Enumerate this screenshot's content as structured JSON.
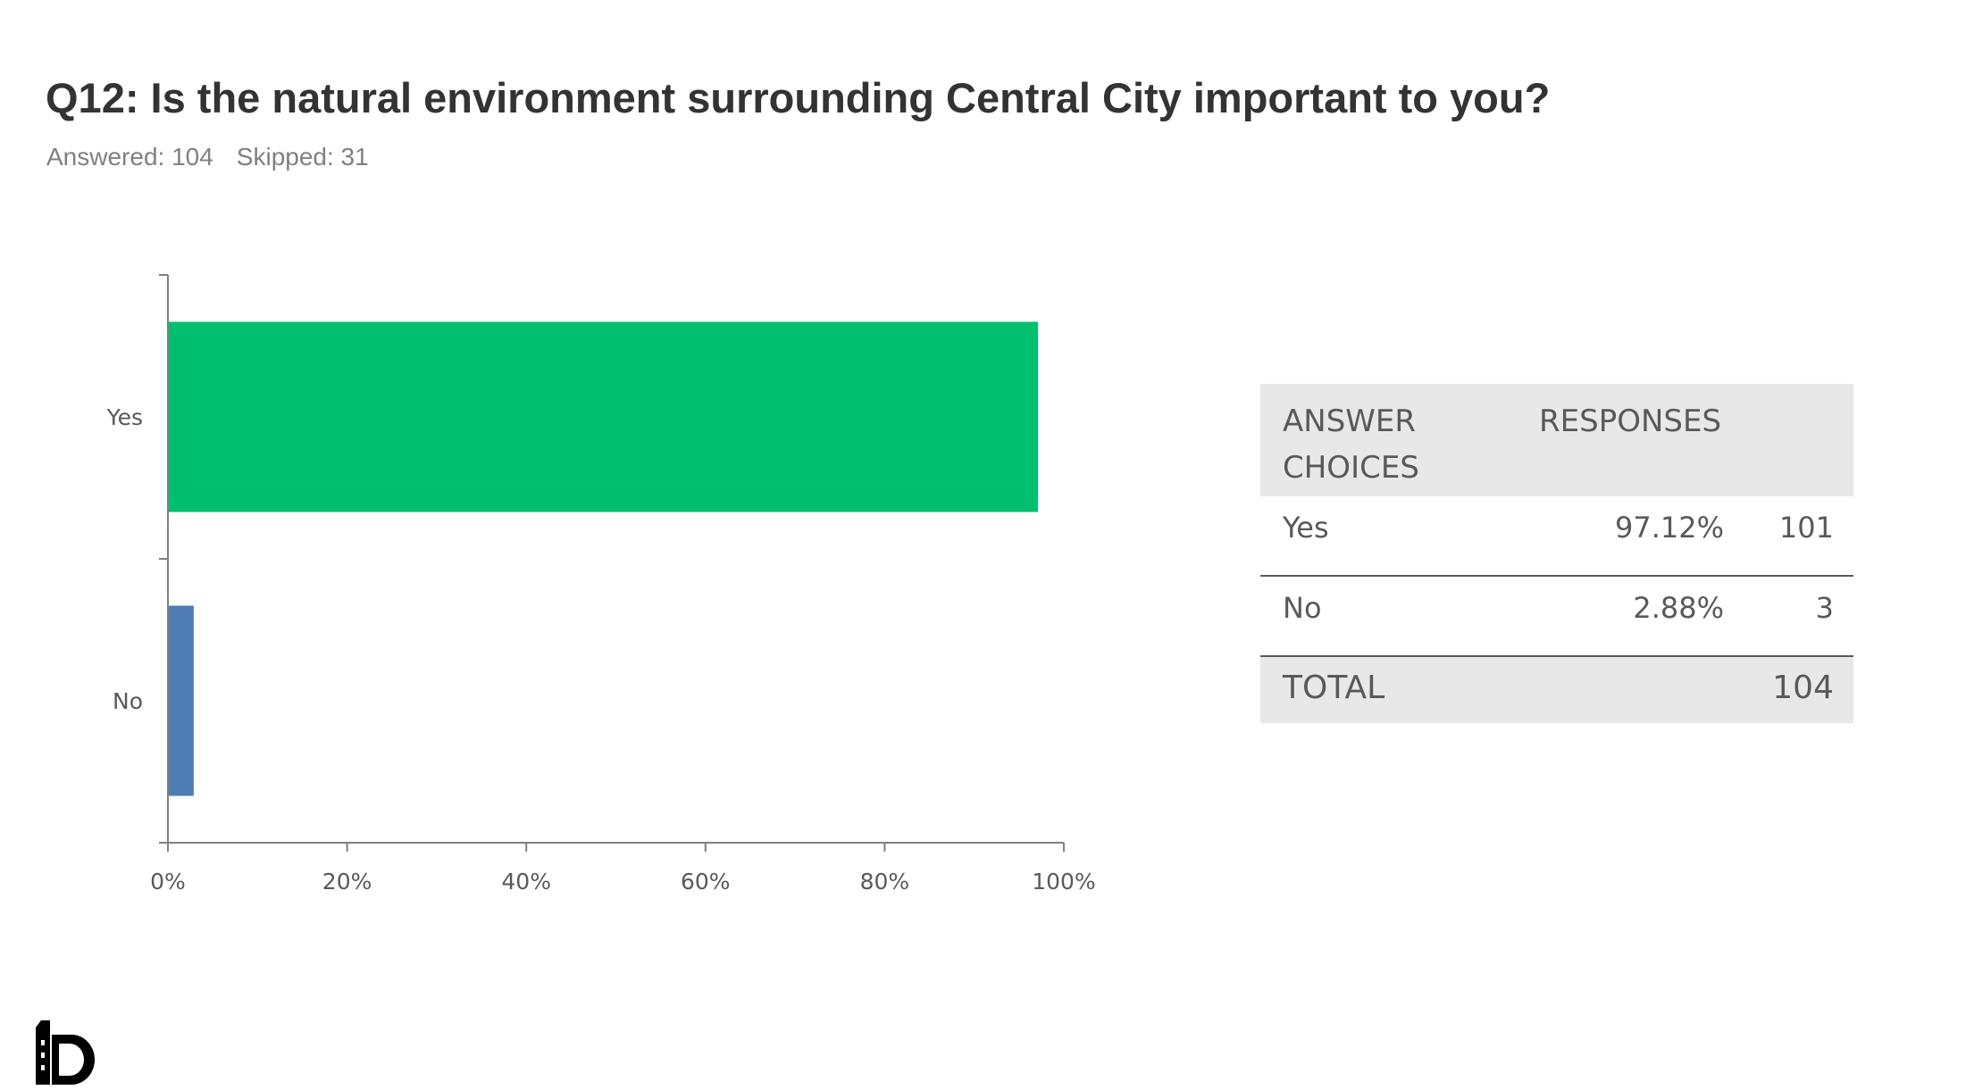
{
  "header": {
    "title": "Q12: Is the natural environment surrounding Central City important to you?",
    "answered": "Answered: 104",
    "skipped": "Skipped: 31"
  },
  "chart_data": {
    "type": "bar",
    "orientation": "horizontal",
    "categories": [
      "Yes",
      "No"
    ],
    "values": [
      97.12,
      2.88
    ],
    "colors": [
      "#00bf6f",
      "#507cb6"
    ],
    "xlim": [
      0,
      100
    ],
    "xticks": [
      "0%",
      "20%",
      "40%",
      "60%",
      "80%",
      "100%"
    ],
    "grid": false,
    "title": "",
    "xlabel": "",
    "ylabel": ""
  },
  "table": {
    "header_answer": "ANSWER CHOICES",
    "header_responses": "RESPONSES",
    "rows": [
      {
        "choice": "Yes",
        "percent": "97.12%",
        "count": "101"
      },
      {
        "choice": "No",
        "percent": "2.88%",
        "count": "3"
      }
    ],
    "total_label": "TOTAL",
    "total_value": "104"
  },
  "logo": {
    "icon": "building-logo-icon",
    "color": "#000000"
  }
}
